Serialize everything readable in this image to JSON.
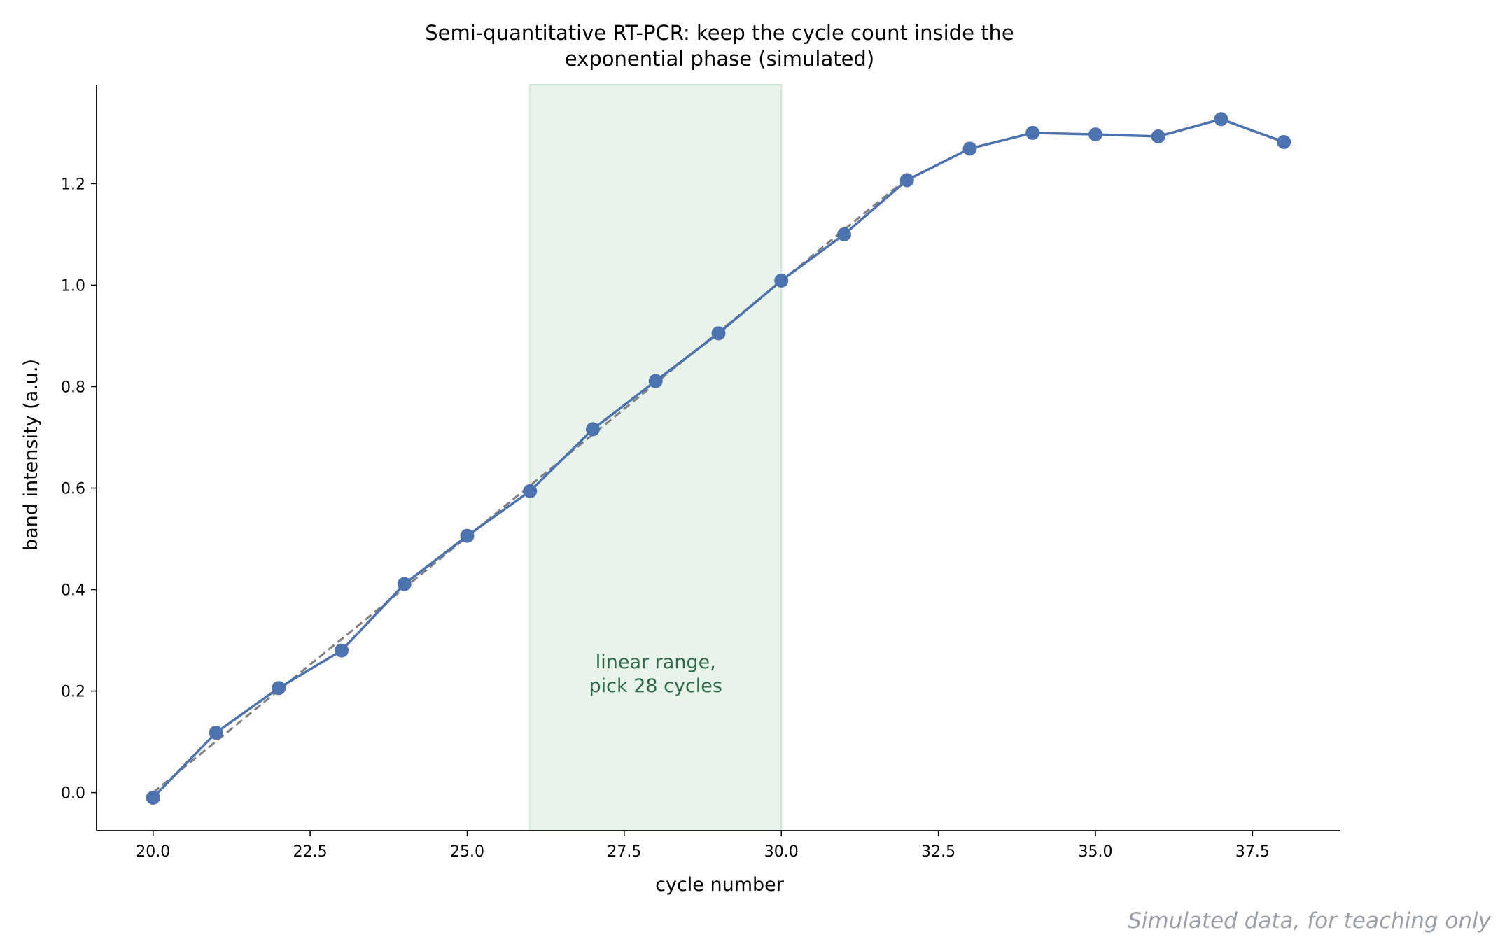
{
  "chart_data": {
    "type": "line",
    "title": "Semi-quantitative RT-PCR: keep the cycle count inside the exponential phase (simulated)",
    "title_lines": [
      "Semi-quantitative RT-PCR: keep the cycle count inside the",
      "exponential phase (simulated)"
    ],
    "xlabel": "cycle number",
    "ylabel": "band intensity (a.u.)",
    "xlim": [
      19.1,
      38.9
    ],
    "ylim": [
      -0.075,
      1.395
    ],
    "xticks": [
      20.0,
      22.5,
      25.0,
      27.5,
      30.0,
      32.5,
      35.0,
      37.5
    ],
    "xtick_labels": [
      "20.0",
      "22.5",
      "25.0",
      "27.5",
      "30.0",
      "32.5",
      "35.0",
      "37.5"
    ],
    "yticks": [
      0.0,
      0.2,
      0.4,
      0.6,
      0.8,
      1.0,
      1.2
    ],
    "ytick_labels": [
      "0.0",
      "0.2",
      "0.4",
      "0.6",
      "0.8",
      "1.0",
      "1.2"
    ],
    "grid": false,
    "series": [
      {
        "type": "line",
        "color": "#4c72b0",
        "x": [
          20,
          21,
          22,
          23,
          24,
          25,
          26,
          27,
          28,
          29,
          30,
          31,
          32,
          33,
          34,
          35,
          36,
          37,
          38
        ],
        "values": [
          -0.01,
          0.118,
          0.206,
          0.28,
          0.411,
          0.506,
          0.594,
          0.716,
          0.811,
          0.905,
          1.009,
          1.1,
          1.207,
          1.269,
          1.3,
          1.297,
          1.293,
          1.327,
          1.282
        ]
      },
      {
        "type": "line",
        "style": "dashed",
        "color": "#808080",
        "x": [
          20,
          32
        ],
        "values": [
          0.0,
          1.21
        ]
      }
    ],
    "shaded_region": {
      "x_start": 26,
      "x_end": 30,
      "color": "#e8f3ea"
    },
    "annotation": {
      "text_lines": [
        "linear range,",
        "pick 28 cycles"
      ],
      "x": 28,
      "y": 0.22
    }
  },
  "footer": {
    "watermark": "Simulated data, for teaching only"
  }
}
